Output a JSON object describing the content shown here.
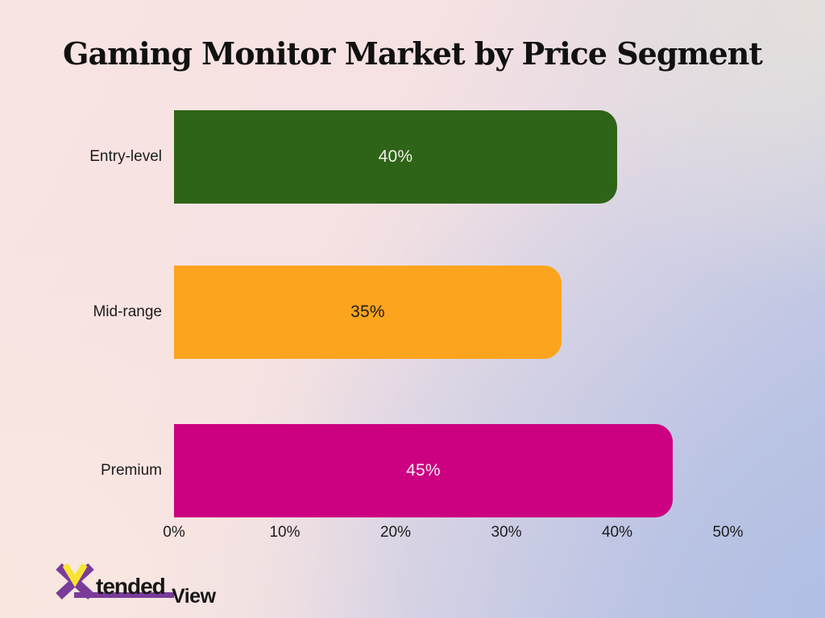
{
  "chart_data": {
    "type": "bar",
    "orientation": "horizontal",
    "title": "Gaming Monitor Market by Price Segment",
    "categories": [
      "Entry-level",
      "Mid-range",
      "Premium"
    ],
    "values": [
      40,
      35,
      45
    ],
    "value_labels": [
      "40%",
      "35%",
      "45%"
    ],
    "bar_colors": [
      "#2e6418",
      "#fca41e",
      "#cc0181"
    ],
    "value_label_colors": [
      "#f2efe7",
      "#1d1c1a",
      "#f7edf3"
    ],
    "x_ticks": [
      "0%",
      "10%",
      "20%",
      "30%",
      "40%",
      "50%"
    ],
    "xlim": [
      0,
      50
    ],
    "xlabel": "",
    "ylabel": "",
    "grid": false,
    "legend": false
  },
  "background": {
    "top_left": "#f8e4e2",
    "top_right": "#e4e0db",
    "bottom_left": "#f9e8e0",
    "bottom_right": "#b6c1e3"
  },
  "logo": {
    "name": "XtendedView",
    "part1": "tended",
    "part2": "View",
    "purple": "#7a3b99",
    "yellow": "#f7e432",
    "text_color": "#171717"
  }
}
